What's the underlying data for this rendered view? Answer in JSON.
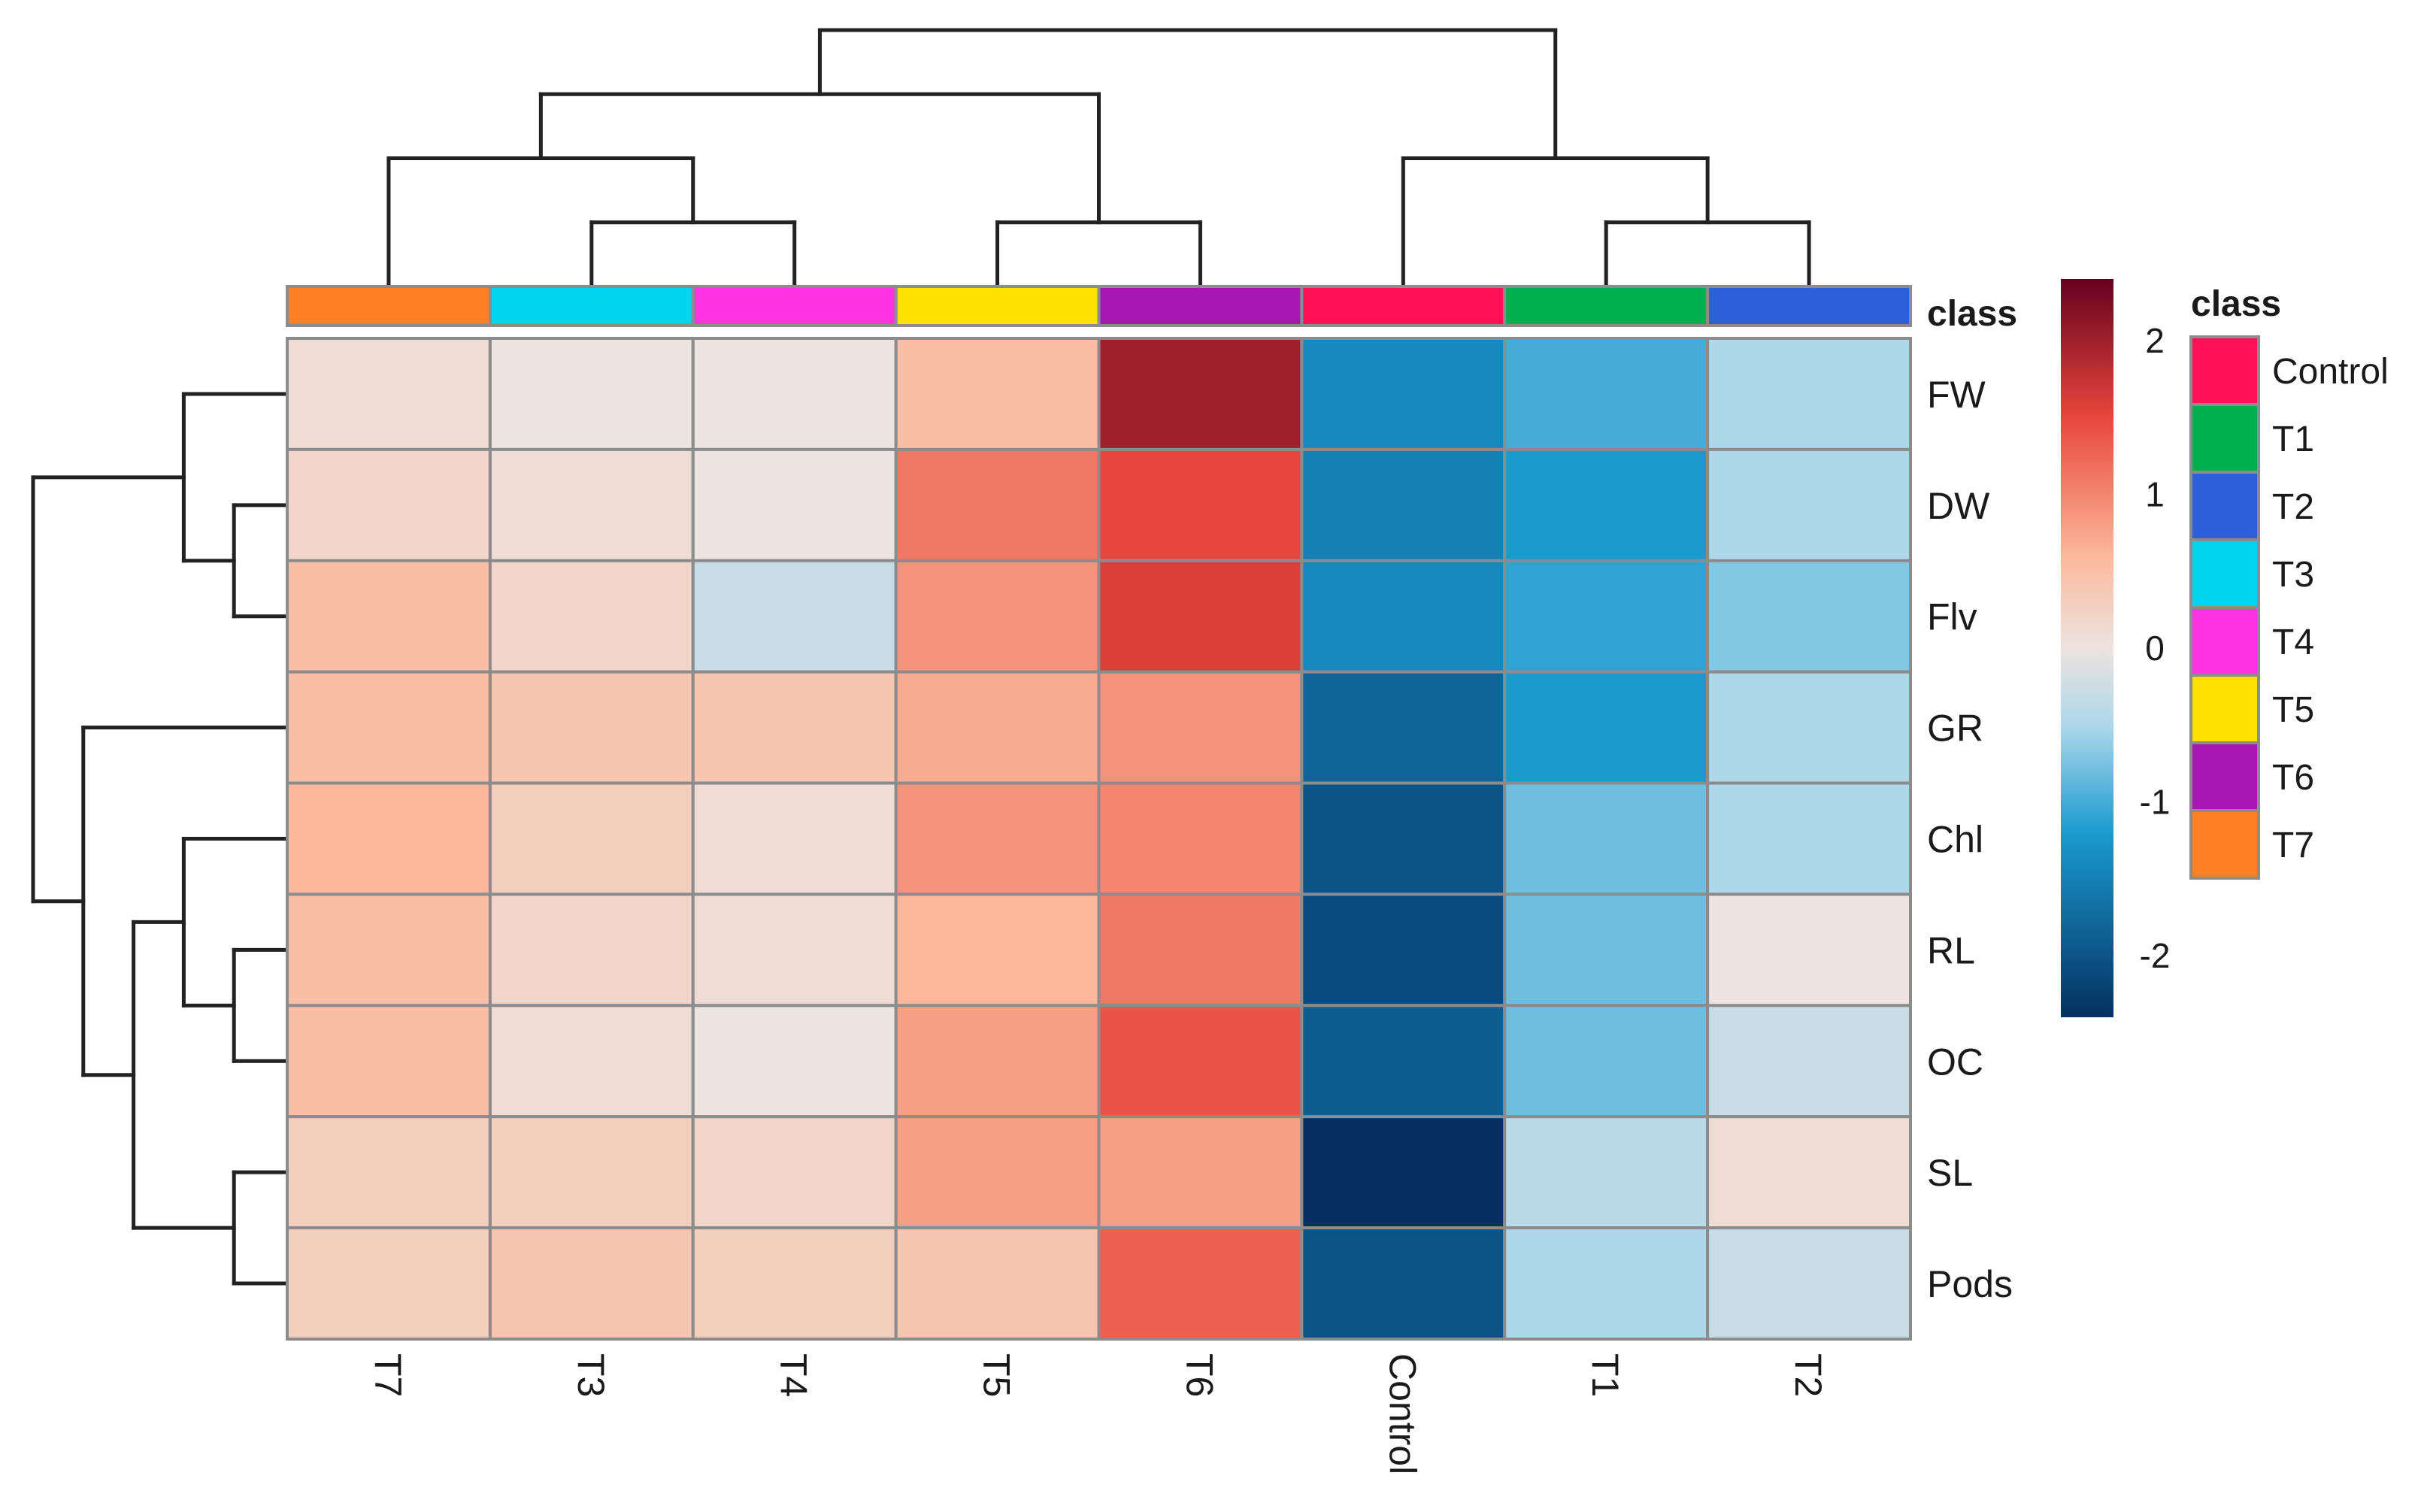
{
  "chart_data": {
    "type": "heatmap",
    "title": "",
    "rows": [
      "FW",
      "DW",
      "Flv",
      "GR",
      "Chl",
      "RL",
      "OC",
      "SL",
      "Pods"
    ],
    "columns": [
      "T7",
      "T3",
      "T4",
      "T5",
      "T6",
      "Control",
      "T1",
      "T2"
    ],
    "values": [
      [
        0.1,
        0.0,
        0.0,
        0.5,
        2.0,
        -1.4,
        -1.0,
        -0.5
      ],
      [
        0.2,
        0.1,
        0.0,
        1.1,
        1.5,
        -1.5,
        -1.2,
        -0.5
      ],
      [
        0.5,
        0.2,
        -0.3,
        0.9,
        1.6,
        -1.4,
        -1.1,
        -0.7
      ],
      [
        0.5,
        0.4,
        0.4,
        0.7,
        0.9,
        -1.8,
        -1.2,
        -0.5
      ],
      [
        0.6,
        0.3,
        0.1,
        0.9,
        1.0,
        -2.0,
        -0.8,
        -0.5
      ],
      [
        0.5,
        0.2,
        0.1,
        0.6,
        1.1,
        -2.1,
        -0.8,
        0.0
      ],
      [
        0.5,
        0.1,
        0.0,
        0.8,
        1.4,
        -1.9,
        -0.8,
        -0.3
      ],
      [
        0.3,
        0.3,
        0.2,
        0.8,
        0.8,
        -2.4,
        -0.4,
        0.1
      ],
      [
        0.3,
        0.4,
        0.3,
        0.4,
        1.3,
        -2.0,
        -0.5,
        -0.3
      ]
    ],
    "color_scale": {
      "min": -2.4,
      "max": 2.4,
      "stops": [
        {
          "value": -2.4,
          "color": "#053061"
        },
        {
          "value": -1.2,
          "color": "#1a9bd0"
        },
        {
          "value": -0.5,
          "color": "#aed8ea"
        },
        {
          "value": 0.0,
          "color": "#ede3e0"
        },
        {
          "value": 0.6,
          "color": "#fbb89a"
        },
        {
          "value": 1.5,
          "color": "#e8463c"
        },
        {
          "value": 2.4,
          "color": "#67001f"
        }
      ],
      "ticks": [
        2,
        1,
        0,
        -1,
        -2
      ]
    },
    "annotation": {
      "name": "class",
      "column_classes": [
        "T7",
        "T3",
        "T4",
        "T5",
        "T6",
        "Control",
        "T1",
        "T2"
      ],
      "legend_title": "class",
      "legend_order": [
        "Control",
        "T1",
        "T2",
        "T3",
        "T4",
        "T5",
        "T6",
        "T7"
      ],
      "colors": {
        "Control": "#ff1155",
        "T1": "#00b04f",
        "T2": "#2e5fdb",
        "T3": "#00d5ef",
        "T4": "#ff33e3",
        "T5": "#ffe100",
        "T6": "#a816b4",
        "T7": "#ff8022"
      }
    },
    "column_dendrogram": "((T7,(T3,T4)),(T5,T6)),(Control,(T1,T2))",
    "row_dendrogram": "(FW,(DW,Flv)),(GR,((Chl,(RL,OC)),(SL,Pods)))"
  }
}
